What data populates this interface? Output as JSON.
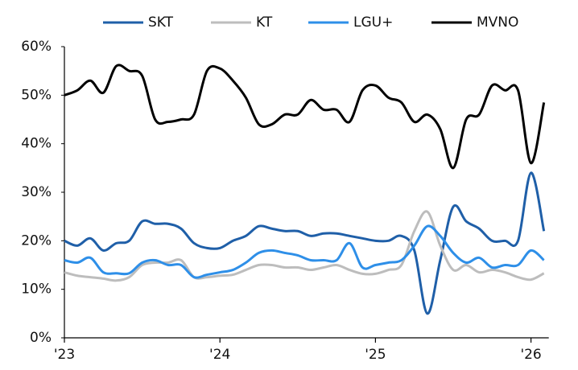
{
  "chart_data": {
    "type": "line",
    "categories": [
      "'23",
      null,
      null,
      null,
      null,
      null,
      null,
      null,
      null,
      null,
      null,
      null,
      "'24",
      null,
      null,
      null,
      null,
      null,
      null,
      null,
      null,
      null,
      null,
      null,
      "'25",
      null,
      null,
      null,
      null,
      null,
      null,
      null,
      null,
      null,
      null,
      null,
      "'26",
      null
    ],
    "ylim": [
      0,
      60
    ],
    "yticks": [
      {
        "value": 0,
        "label": "0%"
      },
      {
        "value": 10,
        "label": "10%"
      },
      {
        "value": 20,
        "label": "20%"
      },
      {
        "value": 30,
        "label": "30%"
      },
      {
        "value": 40,
        "label": "40%"
      },
      {
        "value": 50,
        "label": "50%"
      },
      {
        "value": 60,
        "label": "60%"
      }
    ],
    "grid": false,
    "legend": "top",
    "series": [
      {
        "name": "SKT",
        "color": "#1f5fa8",
        "values": [
          20,
          19,
          20.5,
          18,
          19.5,
          20,
          24,
          23.5,
          23.5,
          22.5,
          19.5,
          18.5,
          18.5,
          20,
          21,
          23,
          22.5,
          22,
          22,
          21,
          21.5,
          21.5,
          21,
          20.5,
          20,
          20,
          21,
          18,
          5,
          16,
          27,
          24,
          22.5,
          20,
          20,
          20,
          34,
          22
        ]
      },
      {
        "name": "KT",
        "color": "#bdbdbd",
        "values": [
          13.5,
          12.8,
          12.5,
          12.2,
          11.8,
          12.5,
          15,
          15.5,
          15.5,
          16,
          12.5,
          12.5,
          12.8,
          13,
          14,
          15,
          15,
          14.5,
          14.5,
          14,
          14.5,
          15,
          14,
          13.2,
          13.2,
          14,
          15,
          22,
          26,
          19,
          14,
          15,
          13.5,
          14,
          13.5,
          12.5,
          12,
          13.3
        ]
      },
      {
        "name": "LGU+",
        "color": "#2e8fe8",
        "values": [
          16,
          15.5,
          16.5,
          13.5,
          13.3,
          13.3,
          15.5,
          16,
          15,
          15,
          12.5,
          13,
          13.5,
          14,
          15.5,
          17.5,
          18,
          17.5,
          17,
          16,
          16,
          16,
          19.5,
          14.5,
          15,
          15.5,
          16,
          19,
          23,
          21,
          17.5,
          15.5,
          16.5,
          14.5,
          15,
          15,
          18,
          16
        ]
      },
      {
        "name": "MVNO",
        "color": "#000000",
        "values": [
          50,
          51,
          53,
          50.5,
          56,
          55,
          54,
          45,
          44.5,
          45,
          46,
          55,
          55.5,
          53,
          49.5,
          44,
          44,
          46,
          46,
          49,
          47,
          47,
          44.5,
          51,
          52,
          49.5,
          48.5,
          44.5,
          46,
          43,
          35,
          45,
          46,
          52,
          51,
          51,
          36,
          48.5
        ]
      }
    ]
  }
}
